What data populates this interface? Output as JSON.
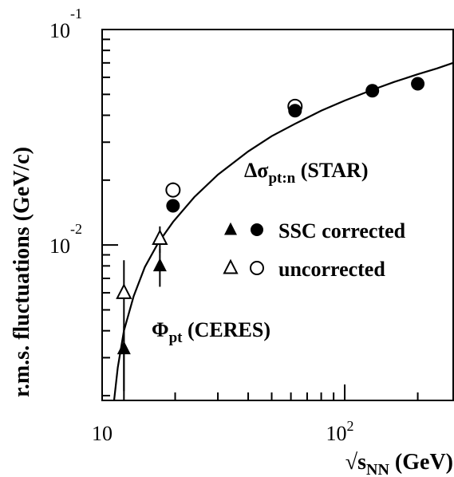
{
  "chart_data": {
    "type": "scatter",
    "x_scale": "log",
    "y_scale": "log",
    "xlim": [
      10,
      280
    ],
    "ylim": [
      0.0019,
      0.1
    ],
    "x_ticks_major": [
      {
        "value": 10,
        "base": "10",
        "exp": ""
      },
      {
        "value": 100,
        "base": "10",
        "exp": "2"
      }
    ],
    "y_ticks_major": [
      {
        "value": 0.01,
        "base": "10",
        "exp": "-2"
      },
      {
        "value": 0.1,
        "base": "10",
        "exp": "-1"
      }
    ],
    "xlabel": {
      "prefix": "√s",
      "sub": "NN",
      "suffix": " (GeV)"
    },
    "ylabel": "r.m.s. fluctuations (GeV/c)",
    "annotations": {
      "star": {
        "prefix": "Δσ",
        "sub": "pt:n",
        "suffix": " (STAR)"
      },
      "ceres": {
        "prefix": "Φ",
        "sub": "pt",
        "suffix": " (CERES)"
      }
    },
    "legend": {
      "position": "right-middle",
      "entries": [
        {
          "label": "SSC corrected",
          "symbols": [
            "filled-triangle",
            "filled-circle"
          ]
        },
        {
          "label": "uncorrected",
          "symbols": [
            "open-triangle",
            "open-circle"
          ]
        }
      ]
    },
    "series": [
      {
        "marker": "filled-circle",
        "points": [
          {
            "x": 19.6,
            "y": 0.0152
          },
          {
            "x": 62.4,
            "y": 0.042
          },
          {
            "x": 130,
            "y": 0.052
          },
          {
            "x": 200,
            "y": 0.056
          }
        ]
      },
      {
        "marker": "open-circle",
        "points": [
          {
            "x": 19.6,
            "y": 0.018
          },
          {
            "x": 62.4,
            "y": 0.044
          }
        ]
      },
      {
        "marker": "filled-triangle",
        "points": [
          {
            "x": 12.3,
            "y": 0.0033,
            "err": [
              0.0021,
              0.0042
            ]
          },
          {
            "x": 17.3,
            "y": 0.008,
            "err": [
              0.0064,
              0.0096
            ]
          }
        ]
      },
      {
        "marker": "open-triangle",
        "points": [
          {
            "x": 12.3,
            "y": 0.006,
            "err": [
              0.0019,
              0.0085
            ]
          },
          {
            "x": 17.3,
            "y": 0.0107,
            "err": [
              0.0092,
              0.0122
            ]
          }
        ]
      }
    ],
    "curve": [
      {
        "x": 11.2,
        "y": 0.0019
      },
      {
        "x": 11.6,
        "y": 0.0027
      },
      {
        "x": 12.3,
        "y": 0.004
      },
      {
        "x": 13.5,
        "y": 0.0058
      },
      {
        "x": 15,
        "y": 0.0079
      },
      {
        "x": 17,
        "y": 0.0102
      },
      {
        "x": 19.6,
        "y": 0.0128
      },
      {
        "x": 24,
        "y": 0.0167
      },
      {
        "x": 30,
        "y": 0.0212
      },
      {
        "x": 40,
        "y": 0.0272
      },
      {
        "x": 50,
        "y": 0.032
      },
      {
        "x": 62.4,
        "y": 0.0365
      },
      {
        "x": 80,
        "y": 0.042
      },
      {
        "x": 100,
        "y": 0.0468
      },
      {
        "x": 130,
        "y": 0.0525
      },
      {
        "x": 160,
        "y": 0.0571
      },
      {
        "x": 200,
        "y": 0.062
      },
      {
        "x": 240,
        "y": 0.066
      },
      {
        "x": 280,
        "y": 0.07
      }
    ]
  }
}
